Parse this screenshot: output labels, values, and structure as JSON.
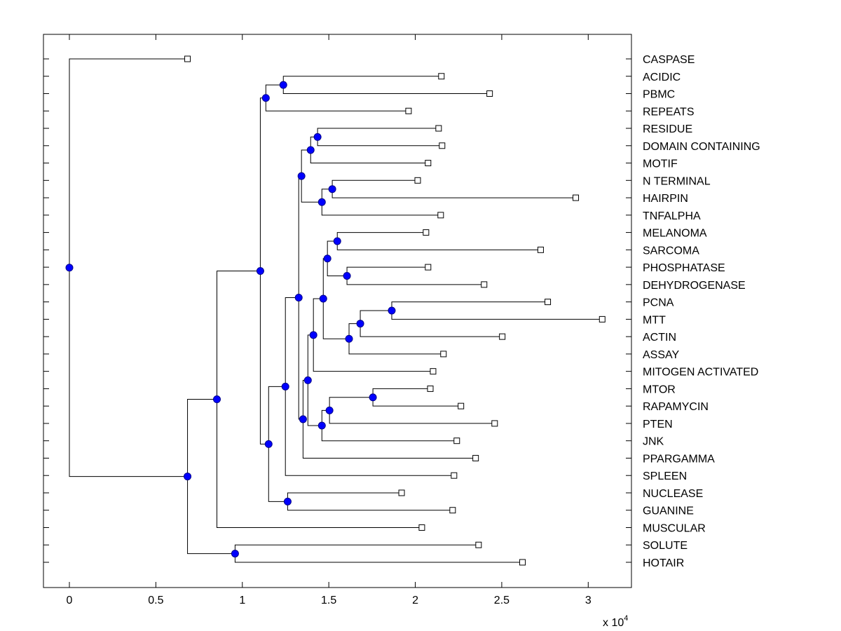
{
  "chart_data": {
    "type": "dendrogram",
    "title": "",
    "xlabel": "",
    "ylabel": "",
    "x_multiplier": {
      "base": "x 10",
      "exponent": "4"
    },
    "xlim": [
      -0.15,
      3.25
    ],
    "xticks": [
      0,
      0.5,
      1,
      1.5,
      2,
      2.5,
      3
    ],
    "xtick_labels": [
      "0",
      "0.5",
      "1",
      "1.5",
      "2",
      "2.5",
      "3"
    ],
    "grid": false,
    "colors": {
      "node": "#0000ff",
      "node_edge": "#00008b",
      "line": "#000000",
      "leaf_fill": "#ffffff"
    },
    "leaves": [
      {
        "label": "CASPASE",
        "x": 0.683
      },
      {
        "label": "ACIDIC",
        "x": 2.151
      },
      {
        "label": "PBMC",
        "x": 2.43
      },
      {
        "label": "REPEATS",
        "x": 1.961
      },
      {
        "label": "RESIDUE",
        "x": 2.135
      },
      {
        "label": "DOMAIN CONTAINING",
        "x": 2.155
      },
      {
        "label": "MOTIF",
        "x": 2.074
      },
      {
        "label": "N TERMINAL",
        "x": 2.014
      },
      {
        "label": "HAIRPIN",
        "x": 2.928
      },
      {
        "label": "TNFALPHA",
        "x": 2.147
      },
      {
        "label": "MELANOMA",
        "x": 2.062
      },
      {
        "label": "SARCOMA",
        "x": 2.725
      },
      {
        "label": "PHOSPHATASE",
        "x": 2.074
      },
      {
        "label": "DEHYDROGENASE",
        "x": 2.398
      },
      {
        "label": "PCNA",
        "x": 2.766
      },
      {
        "label": "MTT",
        "x": 3.081
      },
      {
        "label": "ACTIN",
        "x": 2.503
      },
      {
        "label": "ASSAY",
        "x": 2.163
      },
      {
        "label": "MITOGEN ACTIVATED",
        "x": 2.103
      },
      {
        "label": "MTOR",
        "x": 2.087
      },
      {
        "label": "RAPAMYCIN",
        "x": 2.264
      },
      {
        "label": "PTEN",
        "x": 2.459
      },
      {
        "label": "JNK",
        "x": 2.24
      },
      {
        "label": "PPARGAMMA",
        "x": 2.349
      },
      {
        "label": "SPLEEN",
        "x": 2.224
      },
      {
        "label": "NUCLEASE",
        "x": 1.921
      },
      {
        "label": "GUANINE",
        "x": 2.216
      },
      {
        "label": "MUSCULAR",
        "x": 2.038
      },
      {
        "label": "SOLUTE",
        "x": 2.366
      },
      {
        "label": "HOTAIR",
        "x": 2.62
      }
    ],
    "nodes": [
      {
        "id": "n_acidic_pbmc",
        "x": 1.237,
        "children": [
          "L1",
          "L2"
        ]
      },
      {
        "id": "n_acidic_repeats",
        "x": 1.136,
        "children": [
          "n_acidic_pbmc",
          "L3"
        ]
      },
      {
        "id": "n_residue_domain",
        "x": 1.435,
        "children": [
          "L4",
          "L5"
        ]
      },
      {
        "id": "n_residue_motif",
        "x": 1.395,
        "children": [
          "n_residue_domain",
          "L6"
        ]
      },
      {
        "id": "n_nterm_hairpin",
        "x": 1.52,
        "children": [
          "L7",
          "L8"
        ]
      },
      {
        "id": "n_nterm_tnf",
        "x": 1.46,
        "children": [
          "n_nterm_hairpin",
          "L9"
        ]
      },
      {
        "id": "n_residue_tnf",
        "x": 1.342,
        "children": [
          "n_residue_motif",
          "n_nterm_tnf"
        ]
      },
      {
        "id": "n_melanoma_sarcoma",
        "x": 1.549,
        "children": [
          "L10",
          "L11"
        ]
      },
      {
        "id": "n_phos_dehyd",
        "x": 1.605,
        "children": [
          "L12",
          "L13"
        ]
      },
      {
        "id": "n_melanoma_dehyd",
        "x": 1.492,
        "children": [
          "n_melanoma_sarcoma",
          "n_phos_dehyd"
        ]
      },
      {
        "id": "n_pcna_mtt",
        "x": 1.864,
        "children": [
          "L14",
          "L15"
        ]
      },
      {
        "id": "n_pcna_actin",
        "x": 1.682,
        "children": [
          "n_pcna_mtt",
          "L16"
        ]
      },
      {
        "id": "n_pcna_assay",
        "x": 1.617,
        "children": [
          "n_pcna_actin",
          "L17"
        ]
      },
      {
        "id": "n_melanoma_assay",
        "x": 1.468,
        "children": [
          "n_melanoma_dehyd",
          "n_pcna_assay"
        ]
      },
      {
        "id": "n_melanoma_mitogen",
        "x": 1.411,
        "children": [
          "n_melanoma_assay",
          "L18"
        ]
      },
      {
        "id": "n_mtor_rapa",
        "x": 1.755,
        "children": [
          "L19",
          "L20"
        ]
      },
      {
        "id": "n_mtor_pten",
        "x": 1.504,
        "children": [
          "n_mtor_rapa",
          "L21"
        ]
      },
      {
        "id": "n_mtor_jnk",
        "x": 1.46,
        "children": [
          "n_mtor_pten",
          "L22"
        ]
      },
      {
        "id": "n_melanoma_jnk",
        "x": 1.379,
        "children": [
          "n_melanoma_mitogen",
          "n_mtor_jnk"
        ]
      },
      {
        "id": "n_melanoma_ppar",
        "x": 1.351,
        "children": [
          "n_melanoma_jnk",
          "L23"
        ]
      },
      {
        "id": "n_residue_ppar",
        "x": 1.326,
        "children": [
          "n_residue_tnf",
          "n_melanoma_ppar"
        ]
      },
      {
        "id": "n_residue_spleen",
        "x": 1.249,
        "children": [
          "n_residue_ppar",
          "L24"
        ]
      },
      {
        "id": "n_nuclease_guanine",
        "x": 1.262,
        "children": [
          "L25",
          "L26"
        ]
      },
      {
        "id": "n_residue_guanine",
        "x": 1.152,
        "children": [
          "n_residue_spleen",
          "n_nuclease_guanine"
        ]
      },
      {
        "id": "n_acidic_guanine",
        "x": 1.104,
        "children": [
          "n_acidic_repeats",
          "n_residue_guanine"
        ]
      },
      {
        "id": "n_acidic_muscular",
        "x": 0.853,
        "children": [
          "n_acidic_guanine",
          "L27"
        ]
      },
      {
        "id": "n_solute_hotair",
        "x": 0.958,
        "children": [
          "L28",
          "L29"
        ]
      },
      {
        "id": "n_acidic_hotair",
        "x": 0.683,
        "children": [
          "n_acidic_muscular",
          "n_solute_hotair"
        ]
      },
      {
        "id": "root",
        "x": 0.0,
        "children": [
          "L0",
          "n_acidic_hotair"
        ]
      }
    ]
  }
}
